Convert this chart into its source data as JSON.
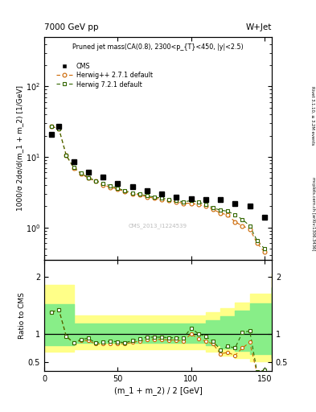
{
  "title_top": "7000 GeV pp",
  "title_right": "W+Jet",
  "annotation": "Pruned jet mass(CA(0.8), 2300<p_{T}<450, |y|<2.5)",
  "watermark": "CMS_2013_I1224539",
  "right_label": "mcplots.cern.ch [arXiv:1306.3436]",
  "right_label2": "Rivet 3.1.10, ≥ 3.2M events",
  "ylabel_main": "1000/σ 2dσ/d(m_1 + m_2) [1/GeV]",
  "ylabel_ratio": "Ratio to CMS",
  "xlabel": "(m_1 + m_2) / 2 [GeV]",
  "cms_x": [
    5,
    10,
    20,
    30,
    40,
    50,
    60,
    70,
    80,
    90,
    100,
    110,
    120,
    130,
    140,
    150
  ],
  "cms_y": [
    21,
    27,
    8.5,
    6.0,
    5.2,
    4.2,
    3.8,
    3.3,
    3.0,
    2.7,
    2.55,
    2.45,
    2.5,
    2.2,
    2.0,
    1.4
  ],
  "hpp_x": [
    5,
    10,
    15,
    20,
    25,
    30,
    35,
    40,
    45,
    50,
    55,
    60,
    65,
    70,
    75,
    80,
    85,
    90,
    95,
    100,
    105,
    110,
    115,
    120,
    125,
    130,
    135,
    140,
    145,
    150
  ],
  "hpp_y": [
    27,
    25,
    10.5,
    7.0,
    5.8,
    5.0,
    4.5,
    4.0,
    3.7,
    3.5,
    3.2,
    3.0,
    2.9,
    2.7,
    2.6,
    2.5,
    2.4,
    2.3,
    2.2,
    2.2,
    2.1,
    2.0,
    1.8,
    1.6,
    1.5,
    1.2,
    1.05,
    0.95,
    0.6,
    0.45
  ],
  "h7_x": [
    5,
    10,
    15,
    20,
    25,
    30,
    35,
    40,
    45,
    50,
    55,
    60,
    65,
    70,
    75,
    80,
    85,
    90,
    95,
    100,
    105,
    110,
    115,
    120,
    125,
    130,
    135,
    140,
    145,
    150
  ],
  "h7_y": [
    27,
    25,
    10.5,
    7.1,
    5.9,
    5.1,
    4.6,
    4.2,
    3.9,
    3.6,
    3.3,
    3.1,
    3.0,
    2.8,
    2.7,
    2.6,
    2.5,
    2.4,
    2.3,
    2.4,
    2.3,
    2.1,
    1.9,
    1.75,
    1.7,
    1.5,
    1.3,
    1.05,
    0.65,
    0.5
  ],
  "hpp_ratio_x": [
    5,
    10,
    15,
    20,
    25,
    30,
    35,
    40,
    45,
    50,
    55,
    60,
    65,
    70,
    75,
    80,
    85,
    90,
    95,
    100,
    105,
    110,
    115,
    120,
    125,
    130,
    135,
    140,
    145,
    150
  ],
  "hpp_ratio_y": [
    1.38,
    1.42,
    0.95,
    0.84,
    0.88,
    0.88,
    0.82,
    0.82,
    0.82,
    0.83,
    0.82,
    0.85,
    0.87,
    0.9,
    0.9,
    0.9,
    0.89,
    0.89,
    0.87,
    1.0,
    0.91,
    0.87,
    0.82,
    0.65,
    0.67,
    0.62,
    0.75,
    0.85,
    0.3,
    0.32
  ],
  "h7_ratio_x": [
    5,
    10,
    15,
    20,
    25,
    30,
    35,
    40,
    45,
    50,
    55,
    60,
    65,
    70,
    75,
    80,
    85,
    90,
    95,
    100,
    105,
    110,
    115,
    120,
    125,
    130,
    135,
    140,
    145,
    150
  ],
  "h7_ratio_y": [
    1.38,
    1.42,
    0.96,
    0.84,
    0.9,
    0.92,
    0.84,
    0.85,
    0.87,
    0.86,
    0.84,
    0.88,
    0.91,
    0.94,
    0.94,
    0.94,
    0.93,
    0.93,
    0.93,
    1.1,
    1.0,
    0.95,
    0.87,
    0.72,
    0.78,
    0.75,
    1.02,
    1.05,
    0.33,
    0.36
  ],
  "hpp_band_x": [
    0,
    10,
    20,
    40,
    60,
    80,
    100,
    110,
    120,
    130,
    140,
    155
  ],
  "hpp_band_lo": [
    0.68,
    0.68,
    0.73,
    0.73,
    0.73,
    0.73,
    0.73,
    0.68,
    0.62,
    0.57,
    0.52,
    0.48
  ],
  "hpp_band_hi": [
    1.85,
    1.85,
    1.32,
    1.32,
    1.32,
    1.32,
    1.32,
    1.38,
    1.45,
    1.55,
    1.7,
    2.05
  ],
  "h7_band_x": [
    0,
    10,
    20,
    40,
    60,
    80,
    100,
    110,
    120,
    130,
    140,
    155
  ],
  "h7_band_lo": [
    0.8,
    0.8,
    0.84,
    0.84,
    0.84,
    0.84,
    0.84,
    0.8,
    0.74,
    0.7,
    0.64,
    0.57
  ],
  "h7_band_hi": [
    1.52,
    1.52,
    1.18,
    1.18,
    1.18,
    1.18,
    1.18,
    1.23,
    1.3,
    1.4,
    1.53,
    1.82
  ],
  "cms_color": "#000000",
  "hpp_color": "#cc6600",
  "h7_color": "#336600",
  "hpp_band_color": "#ffff88",
  "h7_band_color": "#88ee88",
  "ylim_main": [
    0.35,
    500
  ],
  "ylim_ratio": [
    0.35,
    2.3
  ],
  "xlim": [
    0,
    155
  ]
}
